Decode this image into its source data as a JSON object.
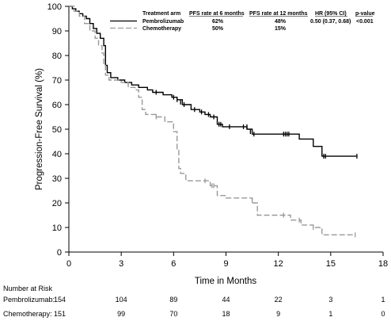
{
  "chart_data": {
    "type": "line",
    "subtype": "kaplan-meier",
    "xlabel": "Time in Months",
    "ylabel": "Progression-Free Survival (%)",
    "xlim": [
      0,
      18
    ],
    "ylim": [
      0,
      100
    ],
    "x_ticks": [
      0,
      3,
      6,
      9,
      12,
      15,
      18
    ],
    "y_ticks": [
      0,
      10,
      20,
      30,
      40,
      50,
      60,
      70,
      80,
      90,
      100
    ],
    "grid": false,
    "legend": {
      "placement": "top-right",
      "headers": {
        "arm": "Treatment arm",
        "pfs6": "PFS rate at 6 months",
        "pfs12": "PFS rate at 12 months",
        "hr": "HR (95% CI)",
        "p": "p-value"
      },
      "rows": [
        {
          "arm": "Pembrolizumab",
          "pfs6": "62%",
          "pfs12": "48%",
          "hr": "0.50 (0.37, 0.68)",
          "p": "<0.001"
        },
        {
          "arm": "Chemotherapy",
          "pfs6": "50%",
          "pfs12": "15%",
          "hr": "",
          "p": ""
        }
      ]
    },
    "series": [
      {
        "name": "Pembrolizumab",
        "color": "#000000",
        "style": "solid",
        "points": [
          [
            0,
            100
          ],
          [
            0.2,
            99
          ],
          [
            0.4,
            98
          ],
          [
            0.6,
            97
          ],
          [
            0.8,
            96
          ],
          [
            1.0,
            95
          ],
          [
            1.2,
            93
          ],
          [
            1.4,
            91
          ],
          [
            1.6,
            89
          ],
          [
            1.8,
            87
          ],
          [
            2.0,
            84
          ],
          [
            2.1,
            76
          ],
          [
            2.2,
            73
          ],
          [
            2.4,
            71
          ],
          [
            2.8,
            70
          ],
          [
            3.2,
            69
          ],
          [
            3.6,
            68
          ],
          [
            4.0,
            67
          ],
          [
            4.5,
            66
          ],
          [
            4.8,
            65
          ],
          [
            5.4,
            64
          ],
          [
            5.9,
            63
          ],
          [
            6.2,
            62
          ],
          [
            6.5,
            60
          ],
          [
            7.0,
            58
          ],
          [
            7.5,
            57
          ],
          [
            7.8,
            56
          ],
          [
            8.1,
            55
          ],
          [
            8.5,
            52
          ],
          [
            8.8,
            51
          ],
          [
            9.5,
            51
          ],
          [
            10.2,
            50
          ],
          [
            10.5,
            48
          ],
          [
            12.0,
            48
          ],
          [
            13.2,
            46
          ],
          [
            14.0,
            43
          ],
          [
            14.5,
            39
          ],
          [
            16.5,
            39
          ]
        ],
        "censors": [
          [
            5.0,
            65
          ],
          [
            6.0,
            63
          ],
          [
            6.2,
            62
          ],
          [
            6.4,
            61
          ],
          [
            6.6,
            60
          ],
          [
            7.2,
            58
          ],
          [
            7.6,
            57
          ],
          [
            8.0,
            56
          ],
          [
            8.3,
            55
          ],
          [
            8.6,
            52
          ],
          [
            8.7,
            52
          ],
          [
            9.2,
            51
          ],
          [
            10.0,
            51
          ],
          [
            10.2,
            51
          ],
          [
            10.4,
            49
          ],
          [
            10.6,
            48
          ],
          [
            12.3,
            48
          ],
          [
            12.4,
            48
          ],
          [
            12.5,
            48
          ],
          [
            12.6,
            48
          ],
          [
            14.6,
            39
          ],
          [
            14.7,
            39
          ],
          [
            16.5,
            39
          ]
        ]
      },
      {
        "name": "Chemotherapy",
        "color": "#999999",
        "style": "dashed",
        "points": [
          [
            0,
            100
          ],
          [
            0.3,
            98
          ],
          [
            0.6,
            96
          ],
          [
            0.9,
            93
          ],
          [
            1.2,
            90
          ],
          [
            1.5,
            87
          ],
          [
            1.7,
            84
          ],
          [
            1.9,
            81
          ],
          [
            2.0,
            76
          ],
          [
            2.1,
            72
          ],
          [
            2.3,
            70
          ],
          [
            3.0,
            69
          ],
          [
            3.4,
            67
          ],
          [
            3.8,
            66
          ],
          [
            4.0,
            63
          ],
          [
            4.2,
            58
          ],
          [
            4.4,
            56
          ],
          [
            5.0,
            55
          ],
          [
            5.5,
            53
          ],
          [
            6.0,
            49
          ],
          [
            6.2,
            42
          ],
          [
            6.3,
            34
          ],
          [
            6.4,
            32
          ],
          [
            6.7,
            29
          ],
          [
            8.1,
            27
          ],
          [
            8.5,
            23
          ],
          [
            9.0,
            22
          ],
          [
            10.5,
            20
          ],
          [
            10.8,
            15
          ],
          [
            12.0,
            15
          ],
          [
            12.7,
            13
          ],
          [
            13.3,
            11
          ],
          [
            14.0,
            10
          ],
          [
            14.5,
            7
          ],
          [
            16.4,
            7
          ]
        ],
        "censors": [
          [
            5.0,
            55
          ],
          [
            7.8,
            29
          ],
          [
            8.2,
            27
          ],
          [
            8.3,
            27
          ],
          [
            10.5,
            21
          ],
          [
            12.3,
            15
          ],
          [
            13.2,
            13
          ],
          [
            14.0,
            10
          ],
          [
            16.4,
            7
          ]
        ]
      }
    ],
    "risk_table": {
      "title": "Number at Risk",
      "times": [
        0,
        3,
        6,
        9,
        12,
        15,
        18
      ],
      "rows": [
        {
          "label": "Pembrolizumab:",
          "counts": [
            "154",
            "104",
            "89",
            "44",
            "22",
            "3",
            "1"
          ]
        },
        {
          "label": "Chemotherapy:",
          "counts": [
            "151",
            "99",
            "70",
            "18",
            "9",
            "1",
            "0"
          ]
        }
      ]
    }
  }
}
